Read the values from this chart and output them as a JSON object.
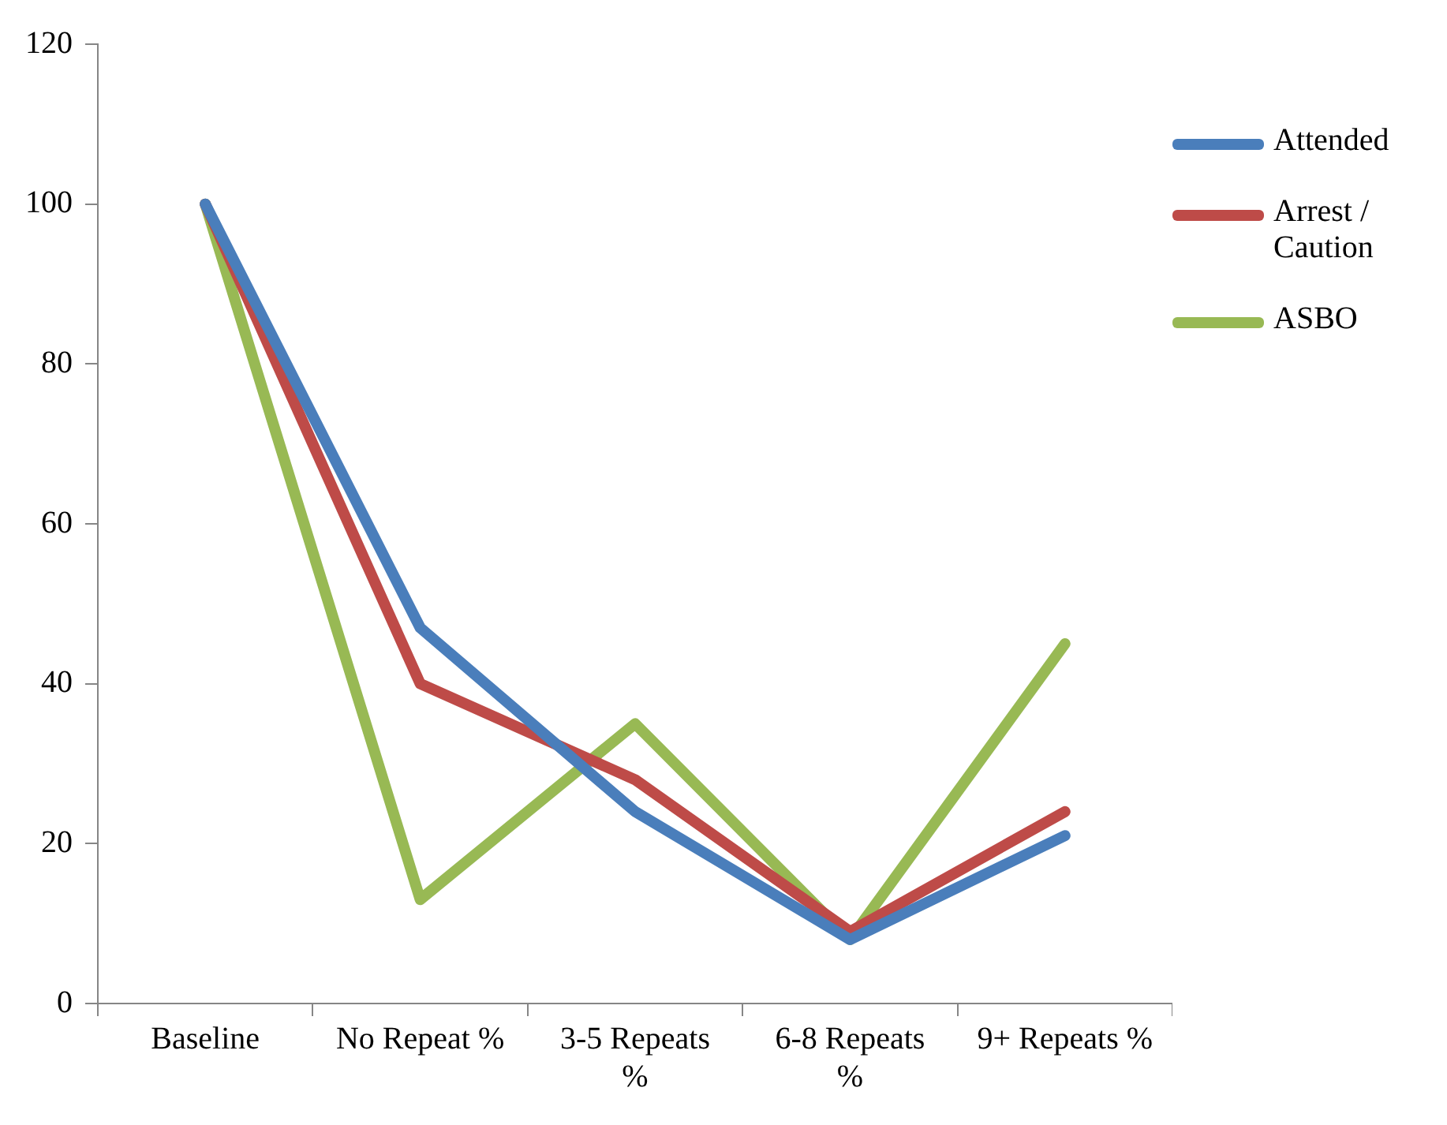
{
  "chart_data": {
    "type": "line",
    "categories": [
      "Baseline",
      "No Repeat %",
      "3-5 Repeats %",
      "6-8 Repeats %",
      "9+ Repeats %"
    ],
    "series": [
      {
        "name": "Attended",
        "color": "#4a7ebb",
        "values": [
          100,
          47,
          24,
          8,
          21
        ]
      },
      {
        "name": "Arrest / Caution",
        "color": "#be4b48",
        "values": [
          100,
          40,
          28,
          9,
          24
        ]
      },
      {
        "name": "ASBO",
        "color": "#98b954",
        "values": [
          100,
          13,
          35,
          8,
          45
        ]
      }
    ],
    "ylim": [
      0,
      120
    ],
    "yticks": [
      0,
      20,
      40,
      60,
      80,
      100,
      120
    ],
    "grid": false,
    "legend": "right",
    "marker": "none",
    "line_style": "solid"
  }
}
